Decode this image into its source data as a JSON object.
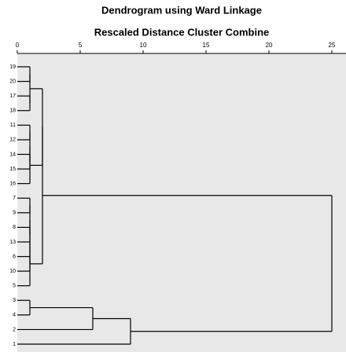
{
  "chart_data": {
    "type": "dendrogram",
    "title": "Dendrogram using Ward Linkage",
    "subtitle": "Rescaled Distance Cluster Combine",
    "xlim": [
      0,
      26
    ],
    "xticks": [
      0,
      5,
      10,
      15,
      20,
      25
    ],
    "leaves": [
      "19",
      "20",
      "17",
      "18",
      "11",
      "12",
      "14",
      "15",
      "16",
      "7",
      "9",
      "8",
      "13",
      "6",
      "10",
      "5",
      "3",
      "4",
      "2",
      "1"
    ],
    "merges": [
      [
        0,
        1,
        1
      ],
      [
        2,
        3,
        1
      ],
      [
        20,
        21,
        1
      ],
      [
        4,
        5,
        1
      ],
      [
        6,
        7,
        1
      ],
      [
        23,
        24,
        1
      ],
      [
        25,
        8,
        1
      ],
      [
        9,
        10,
        1
      ],
      [
        11,
        12,
        1
      ],
      [
        27,
        28,
        1
      ],
      [
        13,
        14,
        1
      ],
      [
        29,
        30,
        1
      ],
      [
        31,
        15,
        1
      ],
      [
        22,
        26,
        2
      ],
      [
        33,
        32,
        2
      ],
      [
        16,
        17,
        1
      ],
      [
        35,
        18,
        6
      ],
      [
        36,
        19,
        9
      ],
      [
        34,
        37,
        25
      ]
    ],
    "color": "#000000",
    "background": "#e8e8e8"
  }
}
